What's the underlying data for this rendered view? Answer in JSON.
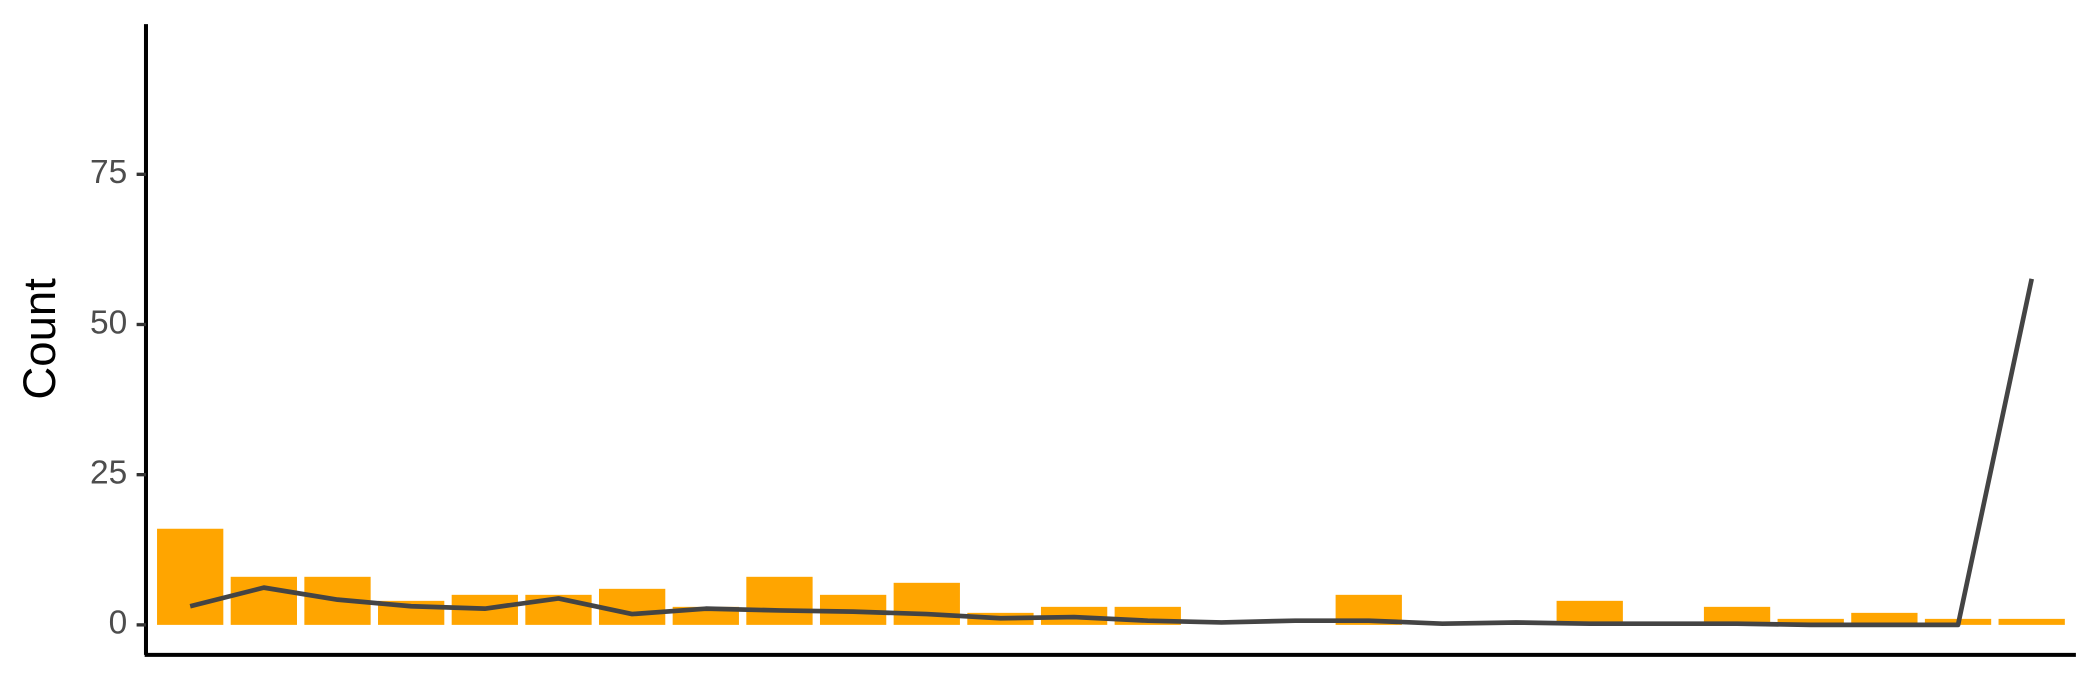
{
  "chart_data": {
    "type": "bar",
    "y_label": "Count",
    "categories": [
      null,
      null,
      null,
      null,
      null,
      null,
      null,
      null,
      null,
      null,
      null,
      null,
      null,
      null,
      null,
      null,
      null,
      null,
      null,
      null,
      null,
      null,
      null,
      null,
      null,
      null
    ],
    "series": [
      {
        "type": "bar",
        "color": "#FFA500",
        "values": [
          16,
          8,
          8,
          4,
          5,
          5,
          6,
          3,
          8,
          5,
          7,
          2,
          3,
          3,
          0,
          0,
          5,
          0,
          0,
          4,
          0,
          3,
          1,
          2,
          1,
          1
        ]
      },
      {
        "type": "line",
        "color": "#444444",
        "values": [
          3.1,
          6.2,
          4.2,
          3.1,
          2.7,
          4.4,
          1.8,
          2.7,
          2.4,
          2.2,
          1.8,
          1.1,
          1.3,
          0.7,
          0.4,
          0.7,
          0.7,
          0.2,
          0.4,
          0.2,
          0.2,
          0.2,
          0,
          0,
          0,
          57.6
        ]
      }
    ],
    "ylim": [
      -5,
      100
    ],
    "yticks": [
      0,
      25,
      50,
      75
    ],
    "grid": false
  }
}
